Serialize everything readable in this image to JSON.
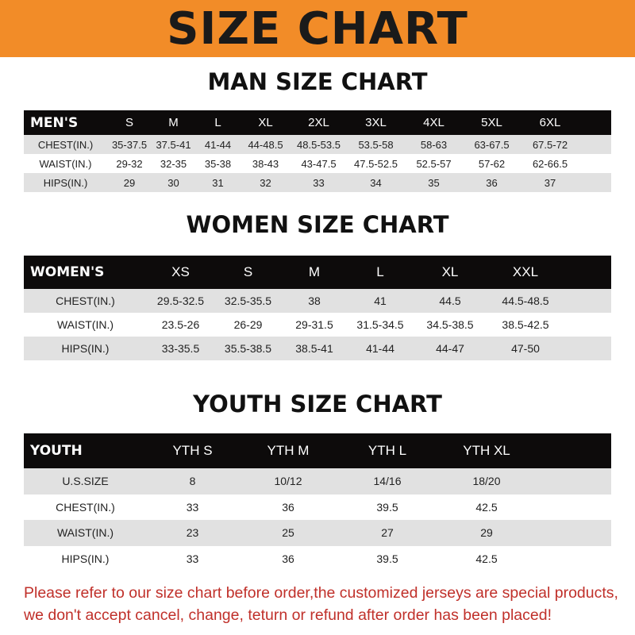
{
  "banner": {
    "title": "SIZE CHART",
    "background_color": "#f28c28"
  },
  "men": {
    "title": "MAN SIZE CHART",
    "header": [
      "MEN'S",
      "S",
      "M",
      "L",
      "XL",
      "2XL",
      "3XL",
      "4XL",
      "5XL",
      "6XL"
    ],
    "rows": [
      [
        "CHEST(IN.)",
        "35-37.5",
        "37.5-41",
        "41-44",
        "44-48.5",
        "48.5-53.5",
        "53.5-58",
        "58-63",
        "63-67.5",
        "67.5-72"
      ],
      [
        "WAIST(IN.)",
        "29-32",
        "32-35",
        "35-38",
        "38-43",
        "43-47.5",
        "47.5-52.5",
        "52.5-57",
        "57-62",
        "62-66.5"
      ],
      [
        "HIPS(IN.)",
        "29",
        "30",
        "31",
        "32",
        "33",
        "34",
        "35",
        "36",
        "37"
      ]
    ]
  },
  "women": {
    "title": "WOMEN SIZE CHART",
    "header": [
      "WOMEN'S",
      "XS",
      "S",
      "M",
      "L",
      "XL",
      "XXL"
    ],
    "rows": [
      [
        "CHEST(IN.)",
        "29.5-32.5",
        "32.5-35.5",
        "38",
        "41",
        "44.5",
        "44.5-48.5"
      ],
      [
        "WAIST(IN.)",
        "23.5-26",
        "26-29",
        "29-31.5",
        "31.5-34.5",
        "34.5-38.5",
        "38.5-42.5"
      ],
      [
        "HIPS(IN.)",
        "33-35.5",
        "35.5-38.5",
        "38.5-41",
        "41-44",
        "44-47",
        "47-50"
      ]
    ]
  },
  "youth": {
    "title": "YOUTH SIZE CHART",
    "header": [
      "YOUTH",
      "YTH S",
      "YTH M",
      "YTH L",
      "YTH XL"
    ],
    "rows": [
      [
        "U.S.SIZE",
        "8",
        "10/12",
        "14/16",
        "18/20"
      ],
      [
        "CHEST(IN.)",
        "33",
        "36",
        "39.5",
        "42.5"
      ],
      [
        "WAIST(IN.)",
        "23",
        "25",
        "27",
        "29"
      ],
      [
        "HIPS(IN.)",
        "33",
        "36",
        "39.5",
        "42.5"
      ]
    ]
  },
  "note": {
    "line1": "Please refer to our size chart before order,the customized jerseys are special products,",
    "line2": "we don't accept cancel, change, teturn or refund after order has been placed!",
    "color": "#c0302a"
  }
}
